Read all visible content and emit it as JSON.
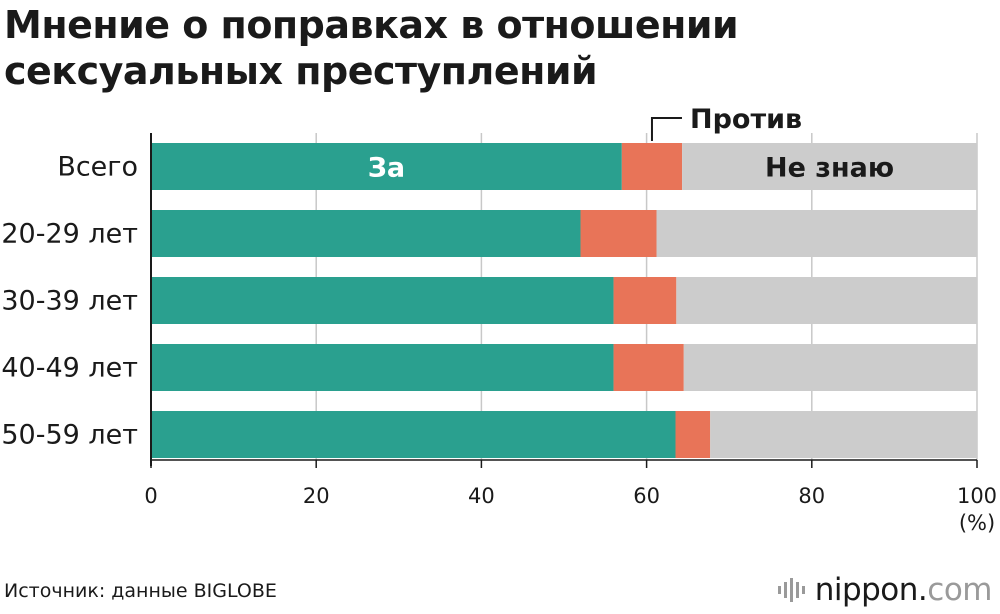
{
  "title": "Мнение о поправках в отношении сексуальных преступлений",
  "source": "Источник: данные BIGLOBE",
  "logo": {
    "name": "nippon",
    "dot": ".",
    "tld": "com"
  },
  "colors": {
    "for": "#2aa08f",
    "against": "#e87458",
    "unknown": "#cccccc",
    "grid": "#c8c8c8",
    "axis": "#1a1a1a"
  },
  "chart_data": {
    "type": "bar",
    "orientation": "horizontal",
    "stacked": true,
    "categories": [
      "Всего",
      "20-29 лет",
      "30-39 лет",
      "40-49 лет",
      "50-59 лет"
    ],
    "series": [
      {
        "name": "За",
        "values": [
          57.0,
          52.0,
          56.0,
          56.0,
          63.5
        ]
      },
      {
        "name": "Против",
        "values": [
          7.3,
          9.2,
          7.6,
          8.5,
          4.2
        ]
      },
      {
        "name": "Не знаю",
        "values": [
          35.7,
          38.8,
          36.4,
          35.5,
          32.3
        ]
      }
    ],
    "xlim": [
      0,
      100
    ],
    "xticks": [
      "0",
      "20",
      "40",
      "60",
      "80",
      "100"
    ],
    "xunit": "(%)",
    "grid": true
  }
}
